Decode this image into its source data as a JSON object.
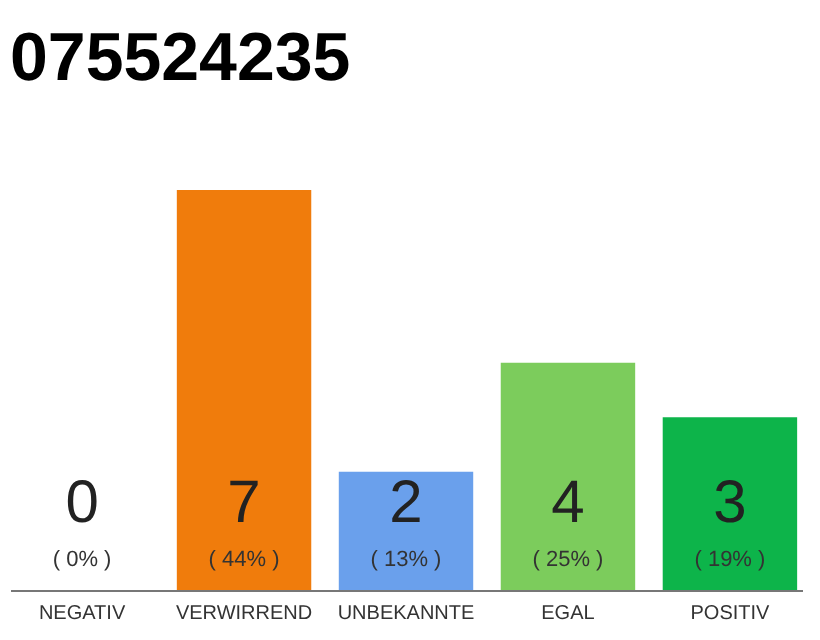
{
  "chart_data": {
    "type": "bar",
    "title": "075524235",
    "categories": [
      "NEGATIV",
      "VERWIRREND",
      "UNBEKANNTE",
      "EGAL",
      "POSITIV"
    ],
    "values": [
      0,
      44,
      13,
      25,
      19
    ],
    "colors": [
      "#bdbdbd",
      "#f07c0c",
      "#6aa0ec",
      "#7ccc5c",
      "#0db44a"
    ],
    "value_labels": [
      "( 0% )",
      "( 44% )",
      "( 13% )",
      "( 25% )",
      "( 19% )"
    ],
    "annotations": [
      "0",
      "7",
      "2",
      "4",
      "3"
    ]
  }
}
